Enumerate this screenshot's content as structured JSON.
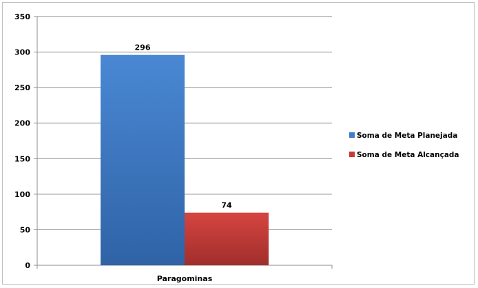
{
  "chart_data": {
    "type": "bar",
    "categories": [
      "Paragominas"
    ],
    "series": [
      {
        "name": "Soma de Meta Planejada",
        "values": [
          296
        ],
        "color": "#3f7ec9"
      },
      {
        "name": "Soma de Meta Alcançada",
        "values": [
          74
        ],
        "color": "#c43a37"
      }
    ],
    "ylim": [
      0,
      350
    ],
    "yticks": [
      0,
      50,
      100,
      150,
      200,
      250,
      300,
      350
    ],
    "grid": true,
    "legend": "right",
    "data_labels": true
  }
}
